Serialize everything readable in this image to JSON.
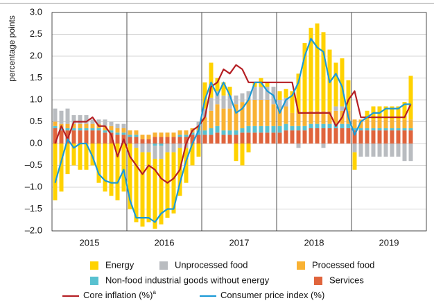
{
  "chart_data": {
    "type": "bar",
    "stacked": true,
    "y_label": "percentage points",
    "ylim": [
      -2,
      3
    ],
    "yticks": [
      {
        "value": -2,
        "label": "–2.0"
      },
      {
        "value": -1.5,
        "label": "–1.5"
      },
      {
        "value": -1,
        "label": "–1.0"
      },
      {
        "value": -0.5,
        "label": "–0.5"
      },
      {
        "value": 0,
        "label": "0.0"
      },
      {
        "value": 0.5,
        "label": "0.5"
      },
      {
        "value": 1,
        "label": "1.0"
      },
      {
        "value": 1.5,
        "label": "1.5"
      },
      {
        "value": 2,
        "label": "2.0"
      },
      {
        "value": 2.5,
        "label": "2.5"
      },
      {
        "value": 3,
        "label": "3.0"
      }
    ],
    "xlim": [
      0,
      60
    ],
    "xticks": [
      {
        "value": 6,
        "label": "2015"
      },
      {
        "value": 18,
        "label": "2016"
      },
      {
        "value": 30,
        "label": "2017"
      },
      {
        "value": 42,
        "label": "2018"
      },
      {
        "value": 54,
        "label": "2019"
      }
    ],
    "x_gridlines": [
      12,
      24,
      36,
      48
    ],
    "grid": true,
    "x": [
      0.5,
      1.5,
      2.5,
      3.5,
      4.5,
      5.5,
      6.5,
      7.5,
      8.5,
      9.5,
      10.5,
      11.5,
      12.5,
      13.5,
      14.5,
      15.5,
      16.5,
      17.5,
      18.5,
      19.5,
      20.5,
      21.5,
      22.5,
      23.5,
      24.5,
      25.5,
      26.5,
      27.5,
      28.5,
      29.5,
      30.5,
      31.5,
      32.5,
      33.5,
      34.5,
      35.5,
      36.5,
      37.5,
      38.5,
      39.5,
      40.5,
      41.5,
      42.5,
      43.5,
      44.5,
      45.5,
      46.5,
      47.5,
      48.5,
      49.5,
      50.5,
      51.5,
      52.5,
      53.5,
      54.5,
      55.5,
      56.5,
      57.5
    ],
    "series": [
      {
        "name": "Services",
        "color": "#e0643c",
        "values": [
          0.35,
          0.3,
          0.3,
          0.3,
          0.3,
          0.3,
          0.3,
          0.3,
          0.25,
          0.25,
          0.2,
          0.2,
          0.15,
          0.15,
          0.1,
          0.1,
          0.15,
          0.15,
          0.15,
          0.15,
          0.15,
          0.15,
          0.2,
          0.2,
          0.2,
          0.2,
          0.25,
          0.2,
          0.2,
          0.2,
          0.25,
          0.25,
          0.25,
          0.25,
          0.25,
          0.25,
          0.25,
          0.3,
          0.3,
          0.3,
          0.3,
          0.35,
          0.35,
          0.35,
          0.35,
          0.35,
          0.35,
          0.35,
          0.3,
          0.3,
          0.3,
          0.3,
          0.3,
          0.3,
          0.3,
          0.3,
          0.3,
          0.3
        ]
      },
      {
        "name": "Non-food industrial goods without energy",
        "color": "#58c1d0",
        "values": [
          0.05,
          0.05,
          0.05,
          0.05,
          0.05,
          0.05,
          0.05,
          0.05,
          0.05,
          0.05,
          0.05,
          0.05,
          0.05,
          0.05,
          0.0,
          0.0,
          -0.05,
          -0.05,
          0.0,
          0.0,
          0.05,
          0.05,
          0.05,
          0.1,
          0.1,
          0.15,
          0.15,
          0.1,
          0.1,
          0.1,
          0.1,
          0.15,
          0.15,
          0.15,
          0.15,
          0.15,
          0.15,
          0.15,
          0.1,
          0.1,
          0.1,
          0.1,
          0.1,
          0.1,
          0.1,
          0.1,
          0.1,
          0.1,
          0.05,
          0.05,
          0.05,
          0.05,
          0.05,
          0.05,
          0.05,
          0.05,
          0.05,
          0.05
        ]
      },
      {
        "name": "Processed food",
        "color": "#f9b233",
        "values": [
          0.1,
          0.1,
          0.1,
          0.1,
          0.1,
          0.1,
          0.1,
          0.1,
          0.1,
          0.1,
          0.1,
          0.1,
          0.1,
          0.1,
          0.1,
          0.1,
          0.1,
          0.1,
          0.1,
          0.1,
          0.1,
          0.1,
          0.1,
          0.1,
          0.3,
          0.4,
          0.5,
          0.5,
          0.5,
          0.6,
          0.6,
          0.6,
          0.6,
          0.6,
          0.6,
          0.5,
          0.4,
          0.4,
          0.3,
          0.3,
          0.3,
          0.3,
          0.3,
          0.3,
          0.3,
          0.3,
          0.3,
          0.3,
          0.2,
          0.2,
          0.2,
          0.2,
          0.2,
          0.2,
          0.2,
          0.2,
          0.2,
          0.2
        ]
      },
      {
        "name": "Unprocessed food",
        "color": "#b9bcc0",
        "values": [
          0.3,
          0.3,
          0.35,
          0.2,
          0.2,
          0.2,
          0.1,
          0.1,
          0.15,
          0.1,
          0.1,
          0.1,
          0.0,
          -0.1,
          -0.2,
          -0.2,
          -0.3,
          -0.3,
          -0.2,
          -0.2,
          -0.1,
          -0.1,
          0.0,
          0.1,
          0.2,
          0.3,
          0.3,
          0.3,
          0.3,
          0.2,
          0.2,
          0.2,
          0.3,
          0.3,
          0.3,
          0.4,
          0.2,
          0.2,
          0.0,
          -0.1,
          0.0,
          0.0,
          0.0,
          -0.1,
          0.0,
          0.1,
          0.1,
          0.0,
          -0.2,
          -0.3,
          -0.3,
          -0.3,
          -0.3,
          -0.3,
          -0.3,
          -0.3,
          -0.4,
          -0.4
        ]
      },
      {
        "name": "Energy",
        "color": "#ffd200",
        "values": [
          -1.3,
          -1.1,
          -0.7,
          -0.5,
          -0.6,
          -0.6,
          -0.5,
          -0.9,
          -1.1,
          -1.2,
          -1.3,
          -1.1,
          -1.5,
          -1.7,
          -1.7,
          -1.6,
          -1.6,
          -1.5,
          -1.5,
          -1.4,
          -1.1,
          -0.8,
          -0.5,
          -0.3,
          0.6,
          0.8,
          0.3,
          0.3,
          0.2,
          -0.4,
          -0.5,
          -0.2,
          0.1,
          0.2,
          0.1,
          0.0,
          0.2,
          0.2,
          0.5,
          0.9,
          1.6,
          1.9,
          2.0,
          1.8,
          1.4,
          1.0,
          1.1,
          0.7,
          -0.4,
          0.0,
          0.2,
          0.3,
          0.3,
          0.3,
          0.3,
          0.3,
          0.4,
          1.0
        ]
      }
    ],
    "lines": [
      {
        "name": "Core inflation (%)",
        "footnote_mark": "a",
        "color": "#b51f24",
        "values": [
          0.0,
          0.4,
          0.1,
          0.5,
          0.5,
          0.5,
          0.6,
          0.4,
          0.4,
          0.2,
          -0.3,
          0.1,
          -0.3,
          -0.5,
          -0.7,
          -0.5,
          -0.6,
          -0.8,
          -0.9,
          -0.8,
          -0.6,
          0.0,
          0.3,
          0.4,
          0.6,
          1.3,
          1.4,
          1.7,
          1.6,
          1.8,
          1.7,
          1.4,
          1.4,
          1.4,
          1.4,
          1.4,
          1.4,
          1.4,
          1.4,
          0.7,
          0.7,
          0.7,
          0.7,
          0.7,
          0.7,
          0.4,
          0.6,
          1.0,
          1.2,
          0.6,
          0.6,
          0.6,
          0.6,
          0.6,
          0.6,
          0.6,
          0.6,
          0.9
        ]
      },
      {
        "name": "Consumer price index (%)",
        "color": "#1b9ad6",
        "values": [
          -0.9,
          -0.4,
          0.1,
          -0.1,
          0.0,
          0.0,
          -0.3,
          -0.7,
          -0.85,
          -0.9,
          -0.9,
          -0.6,
          -1.3,
          -1.7,
          -1.7,
          -1.7,
          -1.8,
          -1.6,
          -1.5,
          -1.5,
          -0.9,
          -0.4,
          0.0,
          0.3,
          1.0,
          1.4,
          1.1,
          1.4,
          1.1,
          0.7,
          0.8,
          1.0,
          1.4,
          1.4,
          1.2,
          1.1,
          0.7,
          1.0,
          1.1,
          1.4,
          2.0,
          2.4,
          2.2,
          2.1,
          1.4,
          1.6,
          1.3,
          0.6,
          0.2,
          0.5,
          0.6,
          0.7,
          0.7,
          0.8,
          0.8,
          0.8,
          0.9,
          0.9
        ]
      }
    ]
  }
}
